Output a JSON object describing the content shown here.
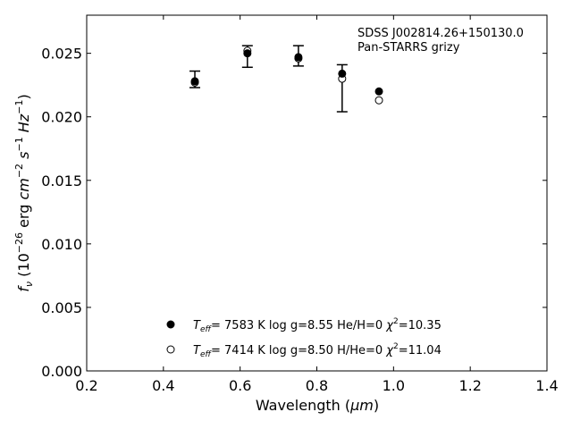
{
  "chart_data": {
    "type": "scatter",
    "title": "",
    "annotation_line1": "SDSS J002814.26+150130.0",
    "annotation_line2": "Pan-STARRS grizy",
    "xlabel": "Wavelength (μm)",
    "ylabel": "fν (10⁻²⁶ erg cm⁻² s⁻¹ Hz⁻¹)",
    "xlim": [
      0.2,
      1.4
    ],
    "ylim": [
      0.0,
      0.028
    ],
    "xticks": [
      0.2,
      0.4,
      0.6,
      0.8,
      1.0,
      1.2,
      1.4
    ],
    "xtick_labels": [
      "0.2",
      "0.4",
      "0.6",
      "0.8",
      "1.0",
      "1.2",
      "1.4"
    ],
    "yticks": [
      0.0,
      0.005,
      0.01,
      0.015,
      0.02,
      0.025
    ],
    "ytick_labels": [
      "0.000",
      "0.005",
      "0.010",
      "0.015",
      "0.020",
      "0.025"
    ],
    "grid": false,
    "legend_position": "lower-center",
    "observed": {
      "x": [
        0.482,
        0.619,
        0.752,
        0.866
      ],
      "y": [
        0.0229,
        0.0248,
        0.0248,
        0.0223
      ],
      "yerr_low": [
        0.0006,
        0.0009,
        0.0008,
        0.0019
      ],
      "yerr_high": [
        0.0007,
        0.0008,
        0.0008,
        0.0018
      ]
    },
    "series": [
      {
        "name": "Teff= 7583 K  log g=8.55  He/H=0  χ²=10.35",
        "marker": "filled",
        "x": [
          0.482,
          0.619,
          0.752,
          0.866,
          0.962
        ],
        "y": [
          0.0228,
          0.025,
          0.0247,
          0.0234,
          0.022
        ]
      },
      {
        "name": "Teff= 7414 K  log g=8.50  H/He=0  χ²=11.04",
        "marker": "open",
        "x": [
          0.482,
          0.619,
          0.752,
          0.866,
          0.962
        ],
        "y": [
          0.0227,
          0.0252,
          0.0246,
          0.023,
          0.0213
        ]
      }
    ],
    "legend": [
      {
        "marker": "filled",
        "teff": "7583",
        "logg": "log g=8.55",
        "comp": "He/H=0",
        "chi": "=10.35"
      },
      {
        "marker": "open",
        "teff": "7414",
        "logg": "log g=8.50",
        "comp": "H/He=0",
        "chi": "=11.04"
      }
    ]
  }
}
